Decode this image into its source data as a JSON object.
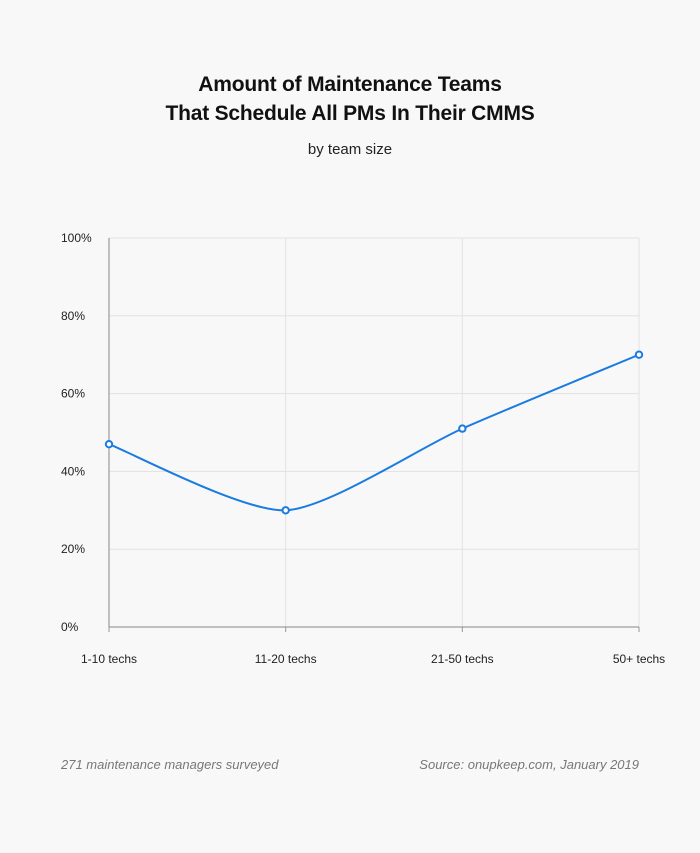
{
  "header": {
    "title_line1": "Amount of Maintenance Teams",
    "title_line2": "That Schedule All PMs In Their CMMS",
    "subtitle": "by team size"
  },
  "chart_data": {
    "type": "line",
    "categories": [
      "1-10 techs",
      "11-20 techs",
      "21-50 techs",
      "50+ techs"
    ],
    "series": [
      {
        "values": [
          47,
          30,
          51,
          70
        ],
        "color": "#1a7be0"
      }
    ],
    "ylim": [
      0,
      100
    ],
    "yticks": [
      0,
      20,
      40,
      60,
      80,
      100
    ],
    "ytick_labels": [
      "0%",
      "20%",
      "40%",
      "60%",
      "80%",
      "100%"
    ],
    "grid": true,
    "xlabel": "",
    "ylabel": ""
  },
  "footer": {
    "note": "271 maintenance managers surveyed",
    "source": "Source: onupkeep.com, January 2019"
  }
}
